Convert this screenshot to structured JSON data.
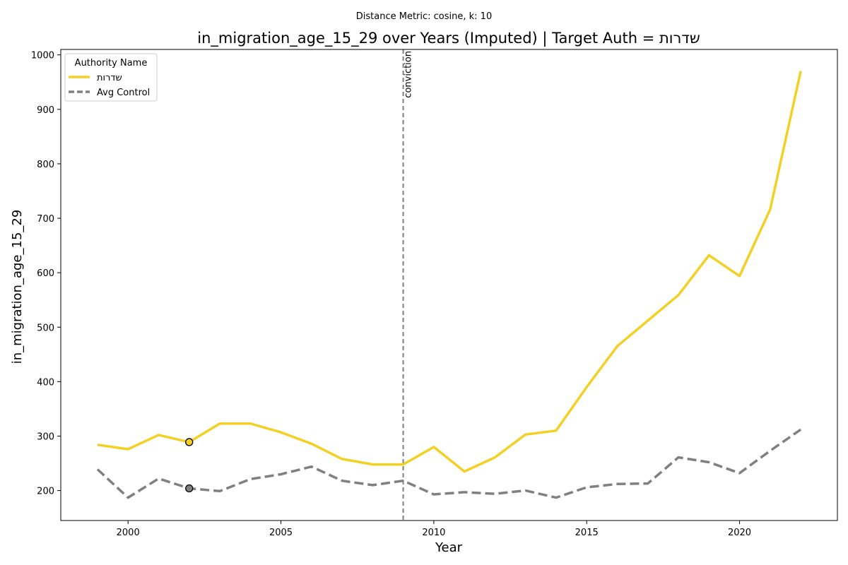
{
  "chart_data": {
    "type": "line",
    "suptitle": "Distance Metric: cosine, k: 10",
    "title": "in_migration_age_15_29 over Years (Imputed) | Target Auth = שדרות",
    "xlabel": "Year",
    "ylabel": "in_migration_age_15_29",
    "xlim": [
      1997.8,
      2023.2
    ],
    "ylim": [
      145,
      1010
    ],
    "xticks": [
      2000,
      2005,
      2010,
      2015,
      2020
    ],
    "yticks": [
      200,
      300,
      400,
      500,
      600,
      700,
      800,
      900,
      1000
    ],
    "grid": false,
    "legend": {
      "title": "Authority Name",
      "placement": "top-left"
    },
    "x": [
      1999,
      2000,
      2001,
      2002,
      2003,
      2004,
      2005,
      2006,
      2007,
      2008,
      2009,
      2010,
      2011,
      2012,
      2013,
      2014,
      2015,
      2016,
      2017,
      2018,
      2019,
      2020,
      2021,
      2022
    ],
    "series": [
      {
        "name": "שדרות",
        "color": "#f2d024",
        "style": "solid",
        "values": [
          284,
          276,
          302,
          289,
          323,
          323,
          307,
          286,
          258,
          248,
          248,
          280,
          235,
          261,
          303,
          310,
          390,
          465,
          512,
          559,
          632,
          594,
          716,
          970
        ]
      },
      {
        "name": "Avg Control",
        "color": "#808080",
        "style": "dashed",
        "values": [
          239,
          187,
          222,
          204,
          199,
          221,
          230,
          244,
          218,
          210,
          218,
          193,
          197,
          194,
          200,
          187,
          206,
          212,
          213,
          261,
          252,
          232,
          273,
          312
        ]
      }
    ],
    "markers": [
      {
        "series": "שדרות",
        "x": 2002,
        "y": 289,
        "color": "#f2d024"
      },
      {
        "series": "Avg Control",
        "x": 2002,
        "y": 204,
        "color": "#808080"
      }
    ],
    "vline": {
      "x": 2009,
      "label": "conviction",
      "color": "#808080"
    }
  }
}
